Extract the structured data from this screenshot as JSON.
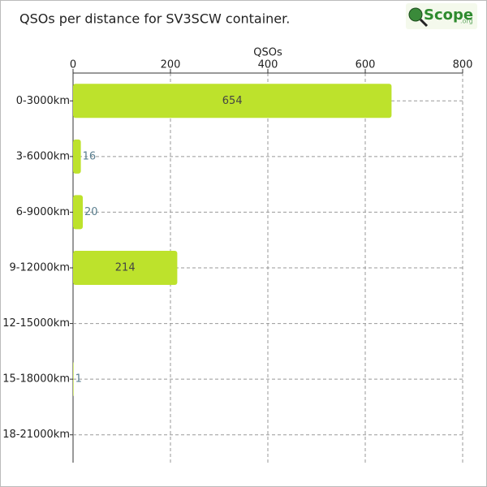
{
  "chart_data": {
    "type": "barh",
    "title": "QSOs per distance for SV3SCW container.",
    "logo": "Scope",
    "logo_suffix": ".org",
    "x_label": "QSOs",
    "categories": [
      "0-3000km",
      "3-6000km",
      "6-9000km",
      "9-12000km",
      "12-15000km",
      "15-18000km",
      "18-21000km"
    ],
    "values": [
      654,
      16,
      20,
      214,
      0,
      1,
      0
    ],
    "color": "#bde22c",
    "xlim": [
      0,
      800
    ],
    "xticks": [
      0,
      200,
      400,
      600,
      800
    ],
    "grid": true
  }
}
